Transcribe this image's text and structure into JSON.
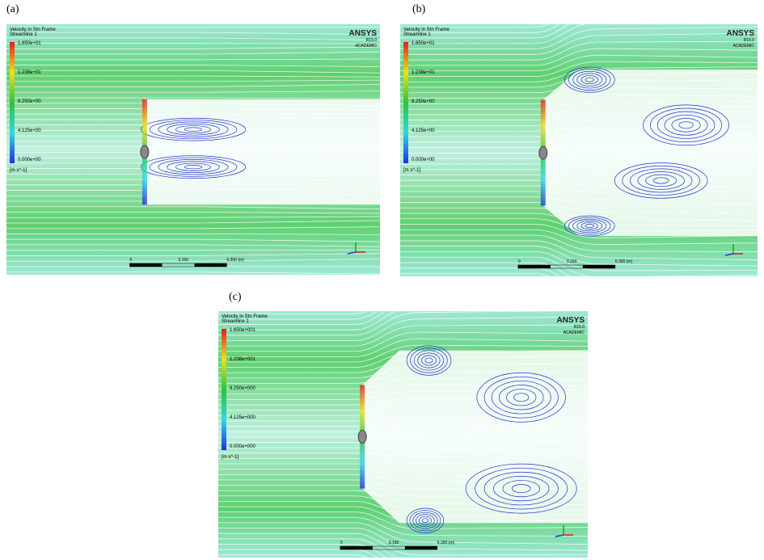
{
  "panels": [
    {
      "label": "(a)",
      "legend_title": "Velocity in Stn Frame",
      "legend_subtitle": "Streamline 1",
      "legend_ticks": [
        "1.650e+01",
        "1.238e+01",
        "8.250e+00",
        "4.125e+00",
        "0.000e+00"
      ],
      "units": "[m s^-1]",
      "brand": "ANSYS",
      "version": "R15.0",
      "license": "ACADEMIC",
      "scale_labels": [
        "0",
        "3.150",
        "6.300 (m)"
      ]
    },
    {
      "label": "(b)",
      "legend_title": "Velocity in Stn Frame",
      "legend_subtitle": "Streamline 1",
      "legend_ticks": [
        "1.650e+01",
        "1.238e+01",
        "8.250e+00",
        "4.125e+00",
        "0.000e+00"
      ],
      "units": "[m s^-1]",
      "brand": "ANSYS",
      "version": "R15.0",
      "license": "ACADEMIC",
      "scale_labels": [
        "0",
        "3.150",
        "6.300 (m)"
      ]
    },
    {
      "label": "(c)",
      "legend_title": "Velocity in Stn Frame",
      "legend_subtitle": "Streamline 1",
      "legend_ticks": [
        "1.650e+001",
        "1.238e+001",
        "8.250e+000",
        "4.125e+000",
        "0.000e+000"
      ],
      "units": "[m s^-1]",
      "brand": "ANSYS",
      "version": "R15.0",
      "license": "ACADEMIC",
      "scale_labels": [
        "0",
        "3.150",
        "6.300 (m)"
      ]
    }
  ]
}
